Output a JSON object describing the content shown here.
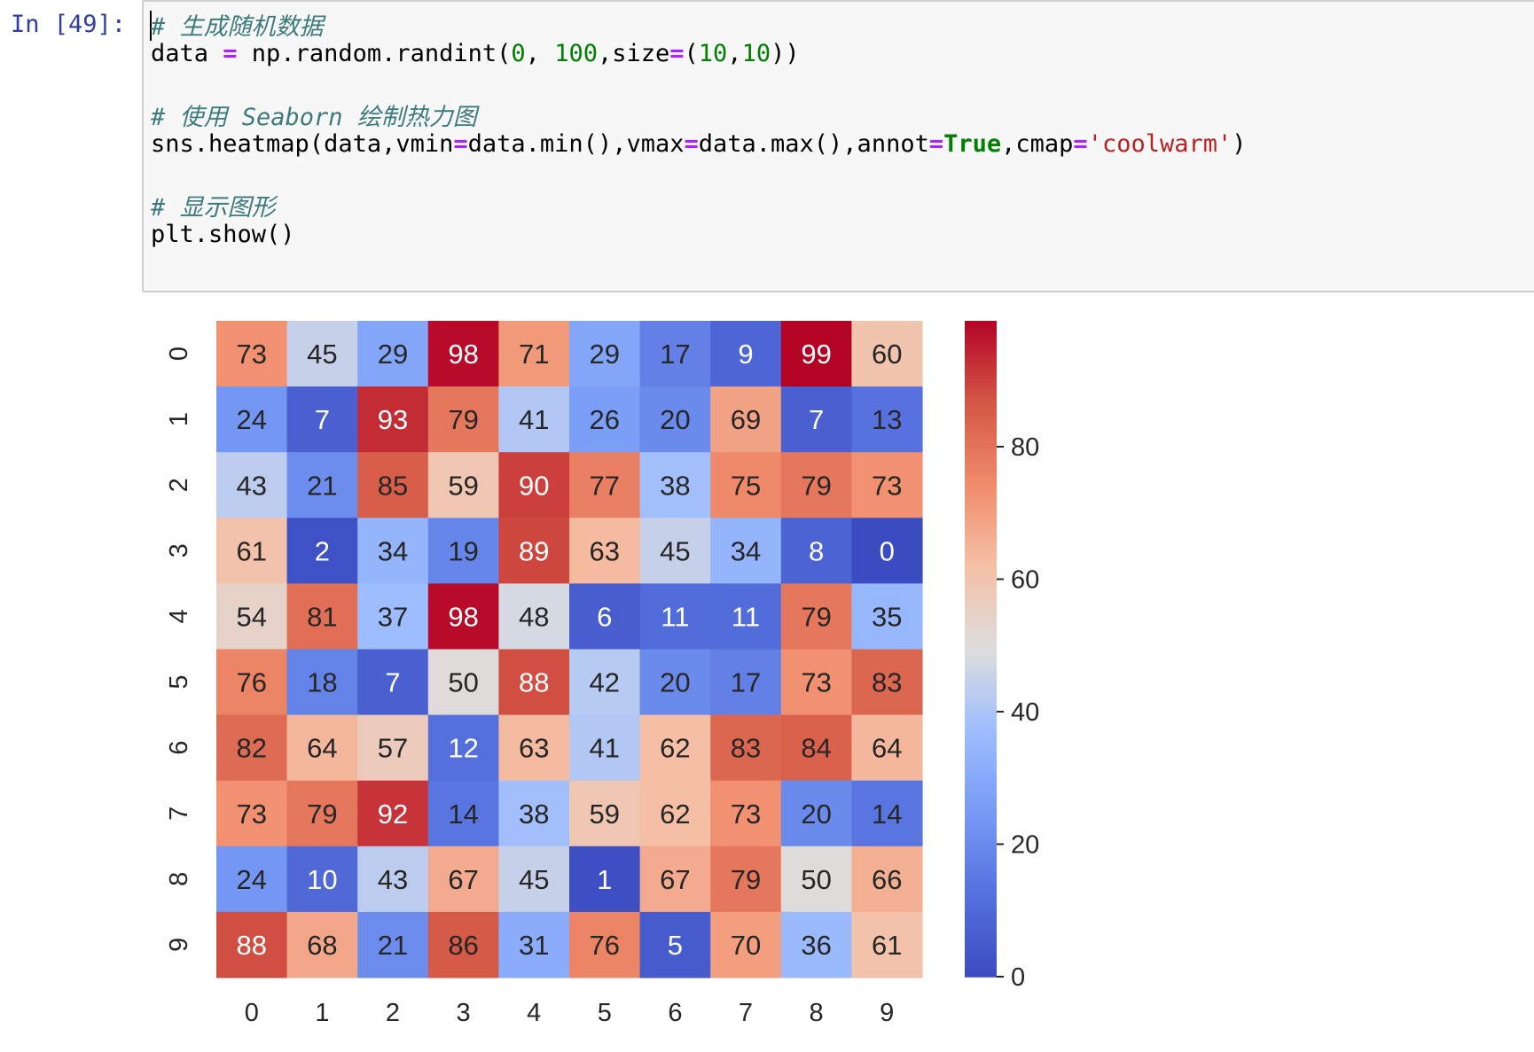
{
  "cell": {
    "prompt": "In [49]:",
    "code": [
      {
        "type": "comment",
        "text": "# 生成随机数据"
      },
      {
        "type": "code",
        "tokens": [
          {
            "t": "data "
          },
          {
            "t": "=",
            "c": "op"
          },
          {
            "t": " np.random.randint("
          },
          {
            "t": "0",
            "c": "num"
          },
          {
            "t": ", "
          },
          {
            "t": "100",
            "c": "num"
          },
          {
            "t": ",size"
          },
          {
            "t": "=",
            "c": "op"
          },
          {
            "t": "("
          },
          {
            "t": "10",
            "c": "num"
          },
          {
            "t": ","
          },
          {
            "t": "10",
            "c": "num"
          },
          {
            "t": "))"
          }
        ]
      },
      {
        "type": "blank",
        "text": ""
      },
      {
        "type": "comment",
        "text": "# 使用 Seaborn 绘制热力图"
      },
      {
        "type": "code",
        "tokens": [
          {
            "t": "sns.heatmap(data,vmin"
          },
          {
            "t": "=",
            "c": "op"
          },
          {
            "t": "data.min(),vmax"
          },
          {
            "t": "=",
            "c": "op"
          },
          {
            "t": "data.max(),annot"
          },
          {
            "t": "=",
            "c": "op"
          },
          {
            "t": "True",
            "c": "kw"
          },
          {
            "t": ",cmap"
          },
          {
            "t": "=",
            "c": "op"
          },
          {
            "t": "'coolwarm'",
            "c": "str"
          },
          {
            "t": ")"
          }
        ]
      },
      {
        "type": "blank",
        "text": ""
      },
      {
        "type": "comment",
        "text": "# 显示图形"
      },
      {
        "type": "code",
        "tokens": [
          {
            "t": "plt.show()"
          }
        ]
      }
    ]
  },
  "chart_data": {
    "type": "heatmap",
    "colormap": "coolwarm",
    "vmin": 0,
    "vmax": 99,
    "x_ticks": [
      "0",
      "1",
      "2",
      "3",
      "4",
      "5",
      "6",
      "7",
      "8",
      "9"
    ],
    "y_ticks": [
      "0",
      "1",
      "2",
      "3",
      "4",
      "5",
      "6",
      "7",
      "8",
      "9"
    ],
    "values": [
      [
        73,
        45,
        29,
        98,
        71,
        29,
        17,
        9,
        99,
        60
      ],
      [
        24,
        7,
        93,
        79,
        41,
        26,
        20,
        69,
        7,
        13
      ],
      [
        43,
        21,
        85,
        59,
        90,
        77,
        38,
        75,
        79,
        73
      ],
      [
        61,
        2,
        34,
        19,
        89,
        63,
        45,
        34,
        8,
        0
      ],
      [
        54,
        81,
        37,
        98,
        48,
        6,
        11,
        11,
        79,
        35
      ],
      [
        76,
        18,
        7,
        50,
        88,
        42,
        20,
        17,
        73,
        83
      ],
      [
        82,
        64,
        57,
        12,
        63,
        41,
        62,
        83,
        84,
        64
      ],
      [
        73,
        79,
        92,
        14,
        38,
        59,
        62,
        73,
        20,
        14
      ],
      [
        24,
        10,
        43,
        67,
        45,
        1,
        67,
        79,
        50,
        66
      ],
      [
        88,
        68,
        21,
        86,
        31,
        76,
        5,
        70,
        36,
        61
      ]
    ],
    "colorbar_ticks": [
      0,
      20,
      40,
      60,
      80
    ],
    "colorbar_tick_labels": [
      "0",
      "20",
      "40",
      "60",
      "80"
    ],
    "annotate": true
  }
}
